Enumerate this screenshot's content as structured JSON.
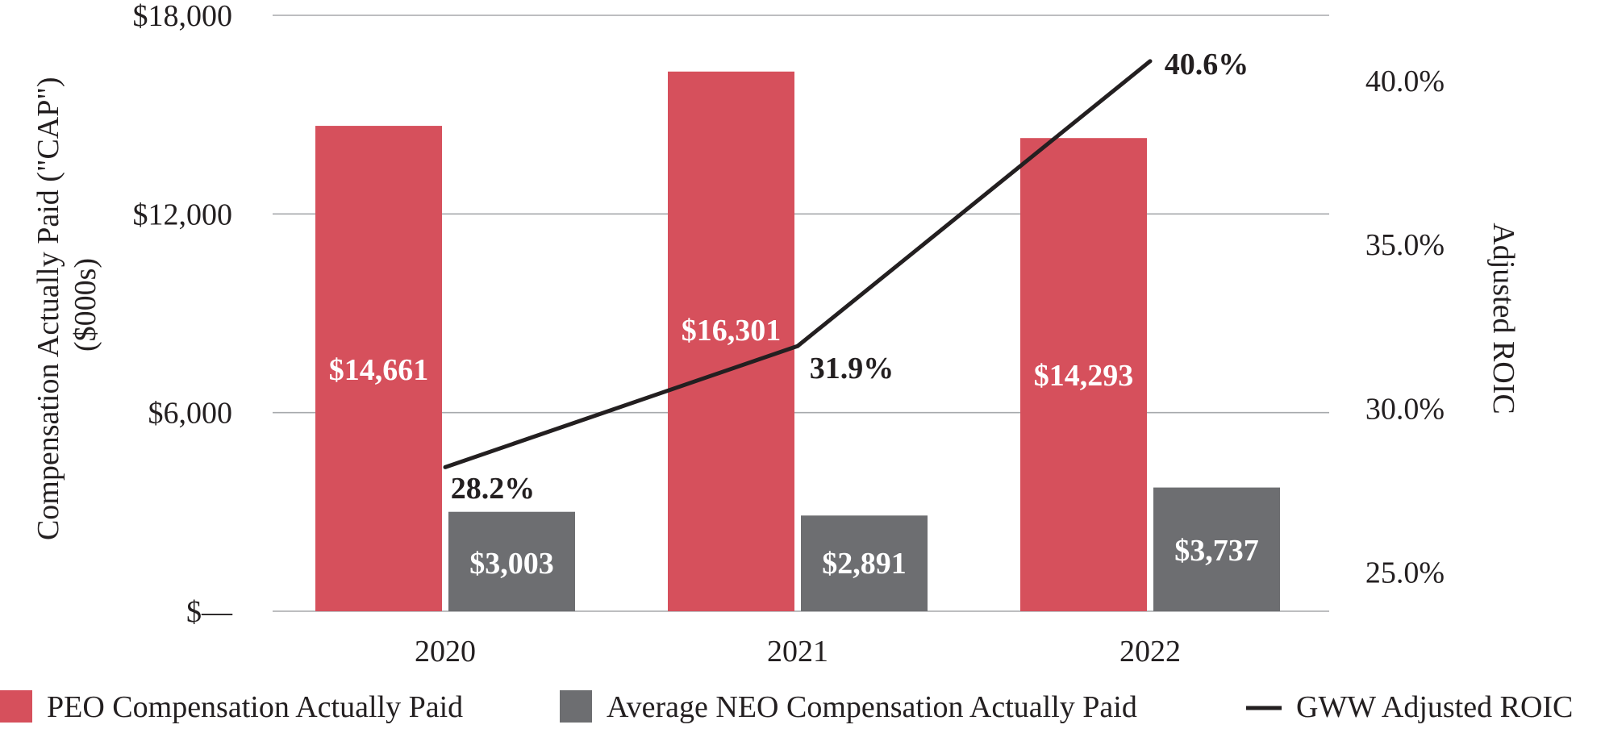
{
  "chart_data": {
    "type": "bar",
    "categories": [
      "2020",
      "2021",
      "2022"
    ],
    "series": [
      {
        "name": "PEO Compensation Actually Paid",
        "values": [
          14661,
          16301,
          14293
        ],
        "labels": [
          "$14,661",
          "$16,301",
          "$14,293"
        ],
        "color": "#d6505c",
        "axis": "left"
      },
      {
        "name": "Average NEO Compensation Actually Paid",
        "values": [
          3003,
          2891,
          3737
        ],
        "labels": [
          "$3,003",
          "$2,891",
          "$3,737"
        ],
        "color": "#6d6e71",
        "axis": "left"
      }
    ],
    "line_series": {
      "name": "GWW Adjusted ROIC",
      "type": "line",
      "values": [
        28.2,
        31.9,
        40.6
      ],
      "labels": [
        "28.2%",
        "31.9%",
        "40.6%"
      ],
      "color": "#231f20",
      "axis": "right"
    },
    "left_axis": {
      "title_line1": "Compensation Actually Paid (\"CAP\")",
      "title_line2": "($000s)",
      "ylim": [
        0,
        18000
      ],
      "ticks": [
        0,
        6000,
        12000,
        18000
      ],
      "tick_labels": [
        "$—",
        "$6,000",
        "$12,000",
        "$18,000"
      ]
    },
    "right_axis": {
      "title": "Adjusted ROIC",
      "ylim": [
        23.8,
        42.0
      ],
      "ticks": [
        25.0,
        30.0,
        35.0,
        40.0
      ],
      "tick_labels": [
        "25.0%",
        "30.0%",
        "35.0%",
        "40.0%"
      ]
    },
    "grid": true,
    "legend_position": "bottom"
  },
  "legend": {
    "items": [
      {
        "label": "PEO Compensation Actually Paid",
        "kind": "square",
        "color": "#d6505c"
      },
      {
        "label": "Average NEO Compensation Actually Paid",
        "kind": "square",
        "color": "#6d6e71"
      },
      {
        "label": "GWW Adjusted ROIC",
        "kind": "line",
        "color": "#231f20"
      }
    ]
  },
  "colors": {
    "grid": "#a7a9ac",
    "text": "#231f20",
    "bar_label_text": "#ffffff"
  }
}
